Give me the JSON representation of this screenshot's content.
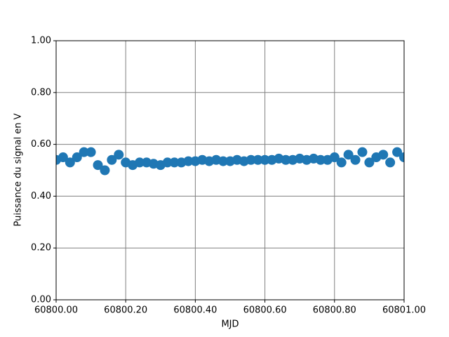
{
  "chart_data": {
    "type": "scatter",
    "xlabel": "MJD",
    "ylabel": "Puissance du signal en V",
    "x": [
      60800,
      60800.02,
      60800.04,
      60800.06,
      60800.08,
      60800.1,
      60800.12,
      60800.14,
      60800.16,
      60800.18,
      60800.2,
      60800.22,
      60800.24,
      60800.26,
      60800.28,
      60800.3,
      60800.32,
      60800.34,
      60800.36,
      60800.38,
      60800.4,
      60800.42,
      60800.44,
      60800.46,
      60800.48,
      60800.5,
      60800.52,
      60800.54,
      60800.56,
      60800.58,
      60800.6,
      60800.62,
      60800.64,
      60800.66,
      60800.68,
      60800.7,
      60800.72,
      60800.74,
      60800.76,
      60800.78,
      60800.8,
      60800.82,
      60800.84,
      60800.86,
      60800.88,
      60800.9,
      60800.92,
      60800.94,
      60800.96,
      60800.98,
      60801
    ],
    "series": [
      {
        "color": "#1f77b4",
        "values": [
          0.54,
          0.55,
          0.53,
          0.55,
          0.57,
          0.57,
          0.52,
          0.5,
          0.54,
          0.56,
          0.53,
          0.52,
          0.53,
          0.53,
          0.525,
          0.52,
          0.53,
          0.53,
          0.53,
          0.535,
          0.535,
          0.54,
          0.535,
          0.54,
          0.535,
          0.535,
          0.54,
          0.535,
          0.54,
          0.54,
          0.54,
          0.54,
          0.545,
          0.54,
          0.54,
          0.545,
          0.54,
          0.545,
          0.54,
          0.54,
          0.55,
          0.53,
          0.56,
          0.54,
          0.57,
          0.53,
          0.55,
          0.56,
          0.53,
          0.57,
          0.55
        ]
      }
    ],
    "xlim": [
      60800,
      60801
    ],
    "xticks": [
      {
        "value": 60800,
        "label": "60800.00"
      },
      {
        "value": 60800.2,
        "label": "60800.20"
      },
      {
        "value": 60800.4,
        "label": "60800.40"
      },
      {
        "value": 60800.6,
        "label": "60800.60"
      },
      {
        "value": 60800.8,
        "label": "60800.80"
      },
      {
        "value": 60801,
        "label": "60801.00"
      }
    ],
    "ylim": [
      0,
      1
    ],
    "yticks": [
      {
        "value": 0,
        "label": "0.00"
      },
      {
        "value": 0.2,
        "label": "0.20"
      },
      {
        "value": 0.4,
        "label": "0.40"
      },
      {
        "value": 0.6,
        "label": "0.60"
      },
      {
        "value": 0.8,
        "label": "0.80"
      },
      {
        "value": 1,
        "label": "1.00"
      }
    ],
    "grid": true
  }
}
